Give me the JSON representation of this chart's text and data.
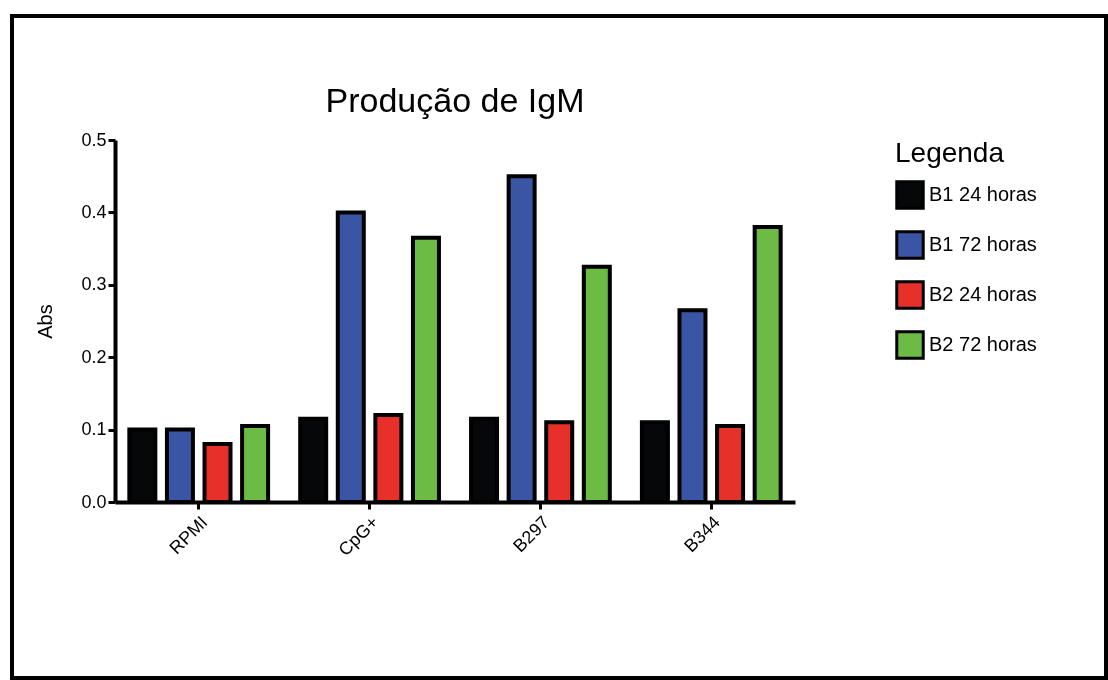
{
  "chart_data": {
    "type": "bar",
    "title": "Produção de IgM",
    "ylabel": "Abs",
    "legend_title": "Legenda",
    "categories": [
      "RPMI",
      "CpG+",
      "B297",
      "B344"
    ],
    "series": [
      {
        "name": "B1 24 horas",
        "color": "#050708",
        "values": [
          0.1,
          0.115,
          0.115,
          0.11
        ]
      },
      {
        "name": "B1 72 horas",
        "color": "#3a55a4",
        "values": [
          0.1,
          0.4,
          0.45,
          0.265
        ]
      },
      {
        "name": "B2 24 horas",
        "color": "#e8302a",
        "values": [
          0.08,
          0.12,
          0.11,
          0.105
        ]
      },
      {
        "name": "B2 72 horas",
        "color": "#6cbb45",
        "values": [
          0.105,
          0.365,
          0.325,
          0.38
        ]
      }
    ],
    "ylim": [
      0,
      0.5
    ],
    "yticks": [
      {
        "value": 0,
        "label": "0.0"
      },
      0.1,
      0.2,
      0.3,
      0.4,
      0.5
    ],
    "grid": false,
    "legend": "right"
  }
}
